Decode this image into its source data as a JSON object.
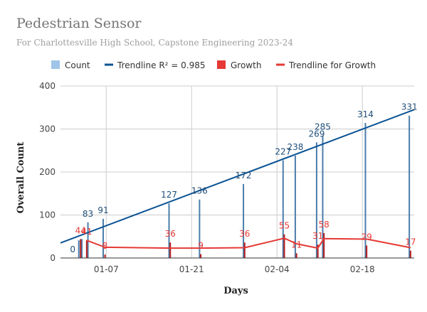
{
  "title": "Pedestrian Sensor",
  "subtitle": "For Charlottesville High School, Capstone Engineering 2023-24",
  "colors": {
    "count": "#9fc5e8",
    "count_bar": "#4a7dab",
    "trendline": "#0b5394",
    "growth": "#e53935",
    "trendline_growth": "#e53935",
    "grid": "#cccccc",
    "count_label": "#1f4e79",
    "growth_label": "#e53935"
  },
  "chart_data": {
    "type": "bar",
    "title": "Pedestrian Sensor",
    "subtitle": "For Charlottesville High School, Capstone Engineering 2023-24",
    "xlabel": "Days",
    "ylabel": "Overall Count",
    "ylim": [
      0,
      400
    ],
    "yticks": [
      "0",
      "100",
      "200",
      "300",
      "400"
    ],
    "xticks": [
      {
        "label": "01-07",
        "day": 7
      },
      {
        "label": "01-21",
        "day": 21
      },
      {
        "label": "02-04",
        "day": 35
      },
      {
        "label": "02-18",
        "day": 49
      }
    ],
    "xrange_days": [
      -0.5,
      57.5
    ],
    "legend": [
      {
        "name": "Count",
        "style": "box",
        "color": "#9fc5e8"
      },
      {
        "name": "Trendline R² = 0.985",
        "style": "line",
        "color": "#0b5394"
      },
      {
        "name": "Growth",
        "style": "box",
        "color": "#e53935"
      },
      {
        "name": "Trendline for Growth",
        "style": "line",
        "color": "#e53935"
      }
    ],
    "legend_position": "top",
    "grid": true,
    "series": [
      {
        "name": "Count",
        "points": [
          {
            "day": 1.5,
            "value": 0,
            "label": "0"
          },
          {
            "day": 2.5,
            "value": 41,
            "label": ""
          },
          {
            "day": 3.0,
            "value": 44,
            "label": ""
          },
          {
            "day": 4.0,
            "value": 83,
            "label": "83"
          },
          {
            "day": 6.5,
            "value": 91,
            "label": "91"
          },
          {
            "day": 17.3,
            "value": 127,
            "label": "127"
          },
          {
            "day": 22.3,
            "value": 136,
            "label": "136"
          },
          {
            "day": 29.5,
            "value": 172,
            "label": "172"
          },
          {
            "day": 36.0,
            "value": 227,
            "label": "227"
          },
          {
            "day": 38.0,
            "value": 238,
            "label": "238"
          },
          {
            "day": 41.5,
            "value": 269,
            "label": "269"
          },
          {
            "day": 42.5,
            "value": 285,
            "label": "285"
          },
          {
            "day": 49.5,
            "value": 314,
            "label": "314"
          },
          {
            "day": 56.7,
            "value": 331,
            "label": "331"
          }
        ]
      },
      {
        "name": "Growth",
        "points": [
          {
            "day": 2.8,
            "value": 44,
            "label": "44"
          },
          {
            "day": 3.8,
            "value": 41,
            "label": "41"
          },
          {
            "day": 6.8,
            "value": 8,
            "label": "8"
          },
          {
            "day": 17.5,
            "value": 36,
            "label": "36"
          },
          {
            "day": 22.5,
            "value": 9,
            "label": "9"
          },
          {
            "day": 29.7,
            "value": 36,
            "label": "36"
          },
          {
            "day": 36.2,
            "value": 55,
            "label": "55"
          },
          {
            "day": 38.2,
            "value": 11,
            "label": "11"
          },
          {
            "day": 41.7,
            "value": 31,
            "label": "31"
          },
          {
            "day": 42.7,
            "value": 58,
            "label": "58"
          },
          {
            "day": 49.7,
            "value": 29,
            "label": "29"
          },
          {
            "day": 56.9,
            "value": 17,
            "label": "17"
          }
        ]
      },
      {
        "name": "Trendline R² = 0.985",
        "line": [
          {
            "day": -0.5,
            "value": 35
          },
          {
            "day": 57.5,
            "value": 345
          }
        ]
      },
      {
        "name": "Trendline for Growth",
        "line": [
          {
            "day": 3.8,
            "value": 41
          },
          {
            "day": 6.8,
            "value": 25
          },
          {
            "day": 17.5,
            "value": 23
          },
          {
            "day": 22.5,
            "value": 23
          },
          {
            "day": 29.7,
            "value": 24
          },
          {
            "day": 36.2,
            "value": 46
          },
          {
            "day": 38.2,
            "value": 33
          },
          {
            "day": 41.7,
            "value": 23
          },
          {
            "day": 42.7,
            "value": 45
          },
          {
            "day": 49.7,
            "value": 44
          },
          {
            "day": 56.9,
            "value": 24
          }
        ]
      }
    ]
  }
}
